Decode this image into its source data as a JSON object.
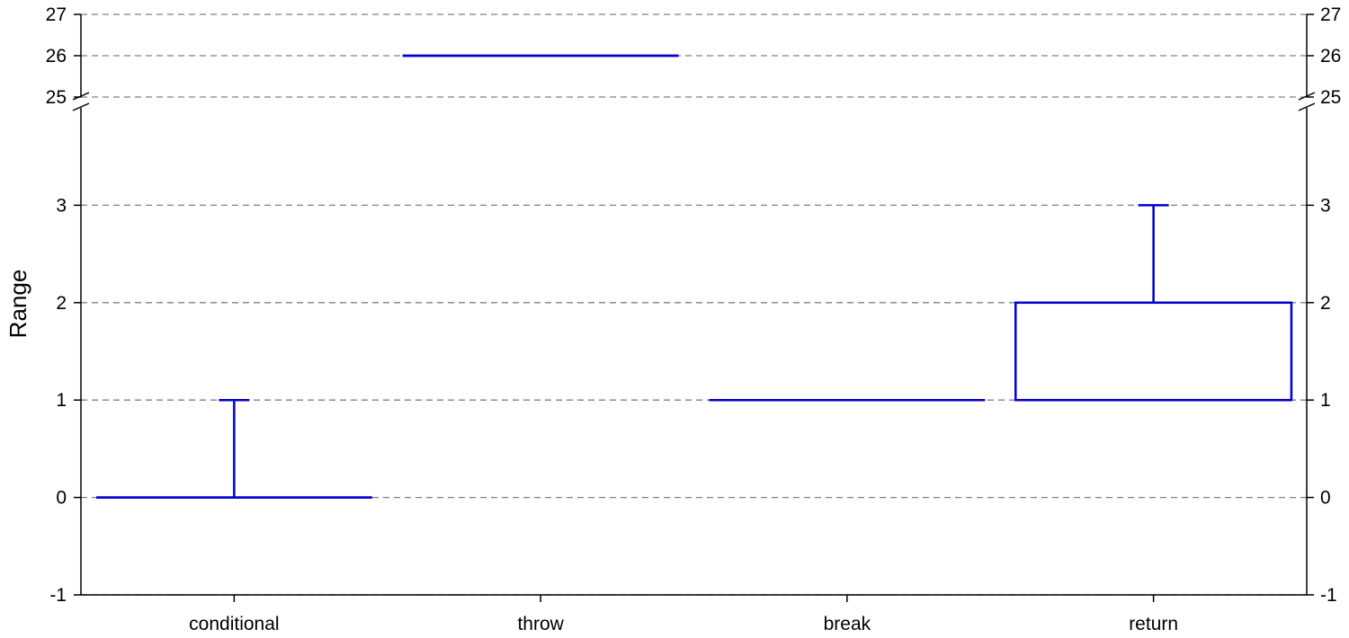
{
  "chart_data": {
    "type": "boxplot",
    "ylabel": "Range",
    "xlabel": "",
    "categories": [
      "conditional",
      "throw",
      "break",
      "return"
    ],
    "boxes": [
      {
        "category": "conditional",
        "whisker_low": 0,
        "q1": 0,
        "median": 0,
        "q3": 0,
        "whisker_high": 1
      },
      {
        "category": "throw",
        "whisker_low": 26,
        "q1": 26,
        "median": 26,
        "q3": 26,
        "whisker_high": 26
      },
      {
        "category": "break",
        "whisker_low": 1,
        "q1": 1,
        "median": 1,
        "q3": 1,
        "whisker_high": 1
      },
      {
        "category": "return",
        "whisker_low": 1,
        "q1": 1,
        "median": 1,
        "q3": 2,
        "whisker_high": 3
      }
    ],
    "y_axis": {
      "broken": true,
      "lower_segment": {
        "ylim": [
          -1,
          4
        ],
        "ticks": [
          "-1",
          "0",
          "1",
          "2",
          "3"
        ]
      },
      "upper_segment": {
        "ylim": [
          25,
          27
        ],
        "ticks": [
          "25",
          "26",
          "27"
        ]
      }
    },
    "grid": "dashed horizontal at ticks",
    "series_color": "#0000cc",
    "grid_color": "#808080",
    "axis_color": "#000000"
  }
}
